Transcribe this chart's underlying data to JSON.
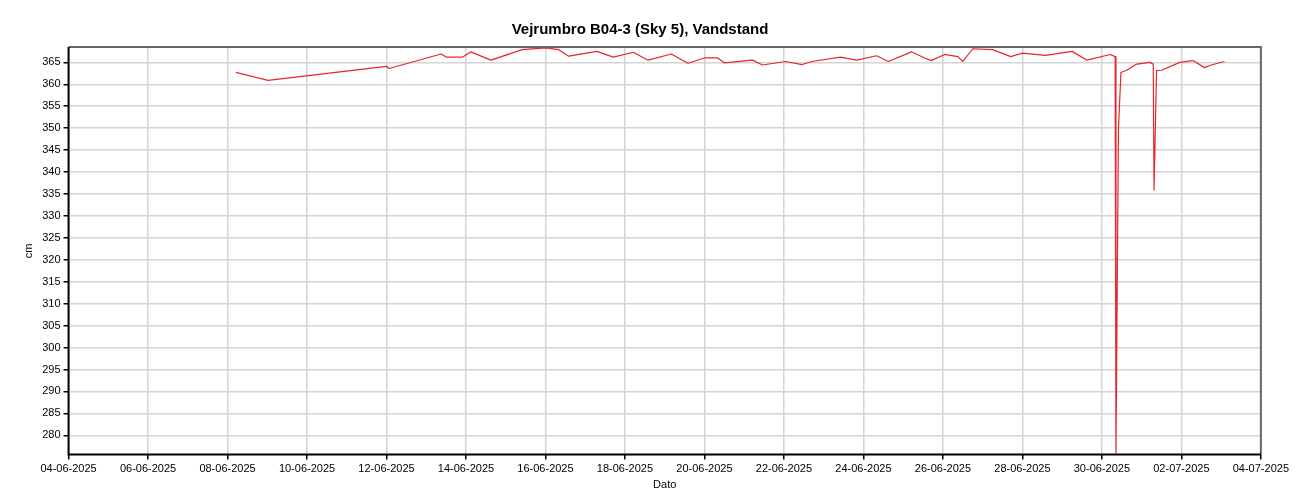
{
  "chart_data": {
    "type": "line",
    "title": "Vejrumbro B04-3 (Sky 5), Vandstand",
    "xlabel": "Dato",
    "ylabel": "cm",
    "x": [
      "2025-06-08T05:00",
      "2025-06-09T00:30",
      "2025-06-12T00:00",
      "2025-06-12T01:30",
      "2025-06-13T09:00",
      "2025-06-13T12:00",
      "2025-06-13T22:00",
      "2025-06-14T03:00",
      "2025-06-14T15:00",
      "2025-06-15T10:00",
      "2025-06-16T00:00",
      "2025-06-16T08:00",
      "2025-06-16T14:00",
      "2025-06-17T07:00",
      "2025-06-17T17:00",
      "2025-06-18T05:00",
      "2025-06-18T14:00",
      "2025-06-19T04:00",
      "2025-06-19T14:00",
      "2025-06-20T00:00",
      "2025-06-20T08:00",
      "2025-06-20T12:00",
      "2025-06-21T05:00",
      "2025-06-21T11:00",
      "2025-06-22T01:00",
      "2025-06-22T11:00",
      "2025-06-22T17:00",
      "2025-06-23T10:00",
      "2025-06-23T20:00",
      "2025-06-24T08:00",
      "2025-06-24T15:00",
      "2025-06-25T05:00",
      "2025-06-25T13:00",
      "2025-06-25T17:00",
      "2025-06-26T01:00",
      "2025-06-26T09:00",
      "2025-06-26T12:00",
      "2025-06-26T18:00",
      "2025-06-27T06:00",
      "2025-06-27T17:00",
      "2025-06-28T00:00",
      "2025-06-28T14:00",
      "2025-06-29T06:00",
      "2025-06-29T15:00",
      "2025-06-30T05:00",
      "2025-06-30T08:00",
      "2025-06-30T08:30",
      "2025-06-30T10:00",
      "2025-06-30T11:30",
      "2025-06-30T15:00",
      "2025-06-30T21:00",
      "2025-07-01T05:00",
      "2025-07-01T07:00",
      "2025-07-01T07:30",
      "2025-07-01T09:00",
      "2025-07-01T12:00",
      "2025-07-01T23:00",
      "2025-07-02T07:00",
      "2025-07-02T14:00",
      "2025-07-02T18:00",
      "2025-07-03T02:00"
    ],
    "series": [
      {
        "color": "#e8262a",
        "values": [
          362.7,
          360.9,
          364.1,
          363.6,
          366.9,
          366.2,
          366.2,
          367.4,
          365.5,
          367.9,
          368.3,
          367.9,
          366.4,
          367.5,
          366.2,
          367.3,
          365.5,
          366.9,
          364.8,
          366.0,
          366.0,
          364.9,
          365.5,
          364.4,
          365.2,
          364.5,
          365.2,
          366.2,
          365.5,
          366.5,
          365.2,
          367.4,
          366.0,
          365.4,
          366.8,
          366.3,
          365.2,
          368.1,
          367.9,
          366.3,
          367.1,
          366.6,
          367.5,
          365.5,
          366.8,
          366.3,
          276.0,
          349.9,
          362.7,
          363.2,
          364.6,
          365.0,
          364.6,
          335.9,
          363.1,
          363.2,
          365.0,
          365.4,
          363.8,
          364.4,
          365.2
        ]
      }
    ],
    "xlim": [
      "2025-06-04",
      "2025-07-04"
    ],
    "xticks": [
      {
        "value": "2025-06-04",
        "label": "04-06-2025"
      },
      {
        "value": "2025-06-06",
        "label": "06-06-2025"
      },
      {
        "value": "2025-06-08",
        "label": "08-06-2025"
      },
      {
        "value": "2025-06-10",
        "label": "10-06-2025"
      },
      {
        "value": "2025-06-12",
        "label": "12-06-2025"
      },
      {
        "value": "2025-06-14",
        "label": "14-06-2025"
      },
      {
        "value": "2025-06-16",
        "label": "16-06-2025"
      },
      {
        "value": "2025-06-18",
        "label": "18-06-2025"
      },
      {
        "value": "2025-06-20",
        "label": "20-06-2025"
      },
      {
        "value": "2025-06-22",
        "label": "22-06-2025"
      },
      {
        "value": "2025-06-24",
        "label": "24-06-2025"
      },
      {
        "value": "2025-06-26",
        "label": "26-06-2025"
      },
      {
        "value": "2025-06-28",
        "label": "28-06-2025"
      },
      {
        "value": "2025-06-30",
        "label": "30-06-2025"
      },
      {
        "value": "2025-07-02",
        "label": "02-07-2025"
      },
      {
        "value": "2025-07-04",
        "label": "04-07-2025"
      }
    ],
    "ylim": [
      275.6,
      368.5
    ],
    "yticks": [
      280,
      285,
      290,
      295,
      300,
      305,
      310,
      315,
      320,
      325,
      330,
      335,
      340,
      345,
      350,
      355,
      360,
      365
    ],
    "grid": true,
    "legend": false,
    "marker": "none",
    "line_style": "solid"
  }
}
